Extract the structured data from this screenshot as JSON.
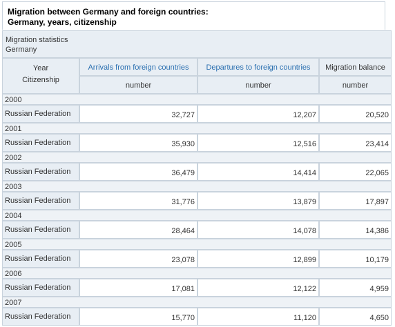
{
  "title": {
    "line1": "Migration between Germany and foreign countries:",
    "line2": "Germany, years, citizenship"
  },
  "stats": {
    "line1": "Migration statistics",
    "line2": "Germany"
  },
  "header": {
    "year": "Year",
    "citizenship": "Citizenship",
    "columns": [
      "Arrivals from foreign countries",
      "Departures to foreign countries",
      "Migration balance"
    ],
    "units": [
      "number",
      "number",
      "number"
    ]
  },
  "rows": [
    {
      "year": "2000",
      "label": "Russian Federation",
      "values": [
        "32,727",
        "12,207",
        "20,520"
      ]
    },
    {
      "year": "2001",
      "label": "Russian Federation",
      "values": [
        "35,930",
        "12,516",
        "23,414"
      ]
    },
    {
      "year": "2002",
      "label": "Russian Federation",
      "values": [
        "36,479",
        "14,414",
        "22,065"
      ]
    },
    {
      "year": "2003",
      "label": "Russian Federation",
      "values": [
        "31,776",
        "13,879",
        "17,897"
      ]
    },
    {
      "year": "2004",
      "label": "Russian Federation",
      "values": [
        "28,464",
        "14,078",
        "14,386"
      ]
    },
    {
      "year": "2005",
      "label": "Russian Federation",
      "values": [
        "23,078",
        "12,899",
        "10,179"
      ]
    },
    {
      "year": "2006",
      "label": "Russian Federation",
      "values": [
        "17,081",
        "12,122",
        "4,959"
      ]
    },
    {
      "year": "2007",
      "label": "Russian Federation",
      "values": [
        "15,770",
        "11,120",
        "4,650"
      ]
    }
  ]
}
